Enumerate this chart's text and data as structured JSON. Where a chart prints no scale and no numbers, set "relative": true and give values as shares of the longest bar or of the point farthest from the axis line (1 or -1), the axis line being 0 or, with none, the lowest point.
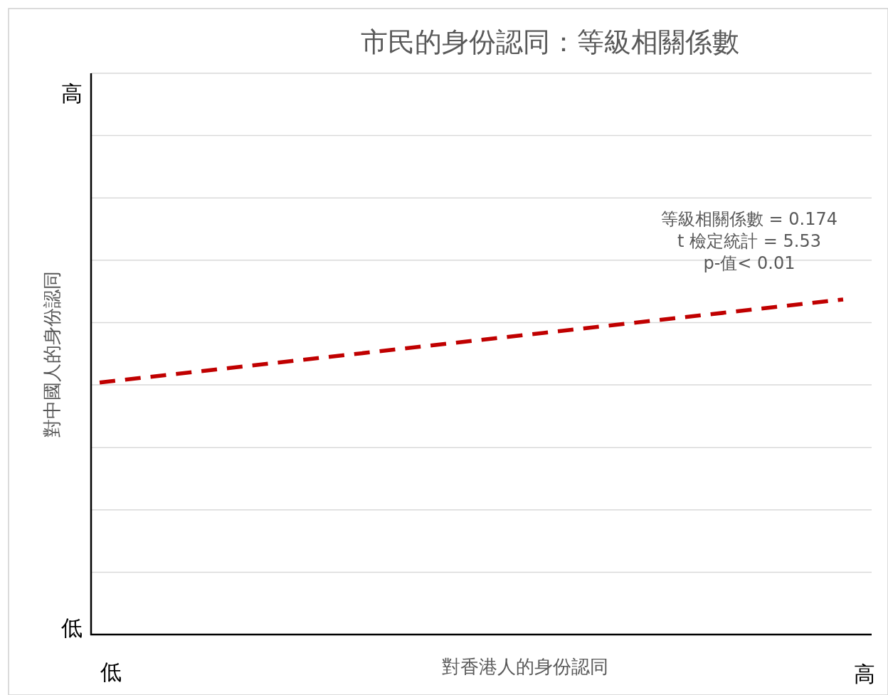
{
  "chart_data": {
    "type": "line",
    "title": "市民的身份認同：等級相關係數",
    "xlabel": "對香港人的身份認同",
    "ylabel": "對中國人的身份認同",
    "categories": [
      null,
      null
    ],
    "relative": true,
    "series": [
      {
        "color": "#c00000",
        "values": [
          0.752,
          1
        ]
      }
    ],
    "line_style": "dashed",
    "ref_lines": [
      {
        "axis": "y",
        "value": 0.186,
        "color": "#d9d9d9"
      },
      {
        "axis": "y",
        "value": 0.372,
        "color": "#d9d9d9"
      },
      {
        "axis": "y",
        "value": 0.558,
        "color": "#d9d9d9"
      },
      {
        "axis": "y",
        "value": 0.745,
        "color": "#d9d9d9"
      },
      {
        "axis": "y",
        "value": 0.931,
        "color": "#d9d9d9"
      },
      {
        "axis": "y",
        "value": 1.117,
        "color": "#d9d9d9"
      },
      {
        "axis": "y",
        "value": 1.303,
        "color": "#d9d9d9"
      },
      {
        "axis": "y",
        "value": 1.489,
        "color": "#d9d9d9"
      },
      {
        "axis": "y",
        "value": 1.675,
        "color": "#d9d9d9"
      }
    ],
    "annotations": [
      "等級相關係數 = 0.174\nt 檢定統計 = 5.53\np-值< 0.01",
      "低",
      "高",
      "低",
      "高"
    ]
  }
}
